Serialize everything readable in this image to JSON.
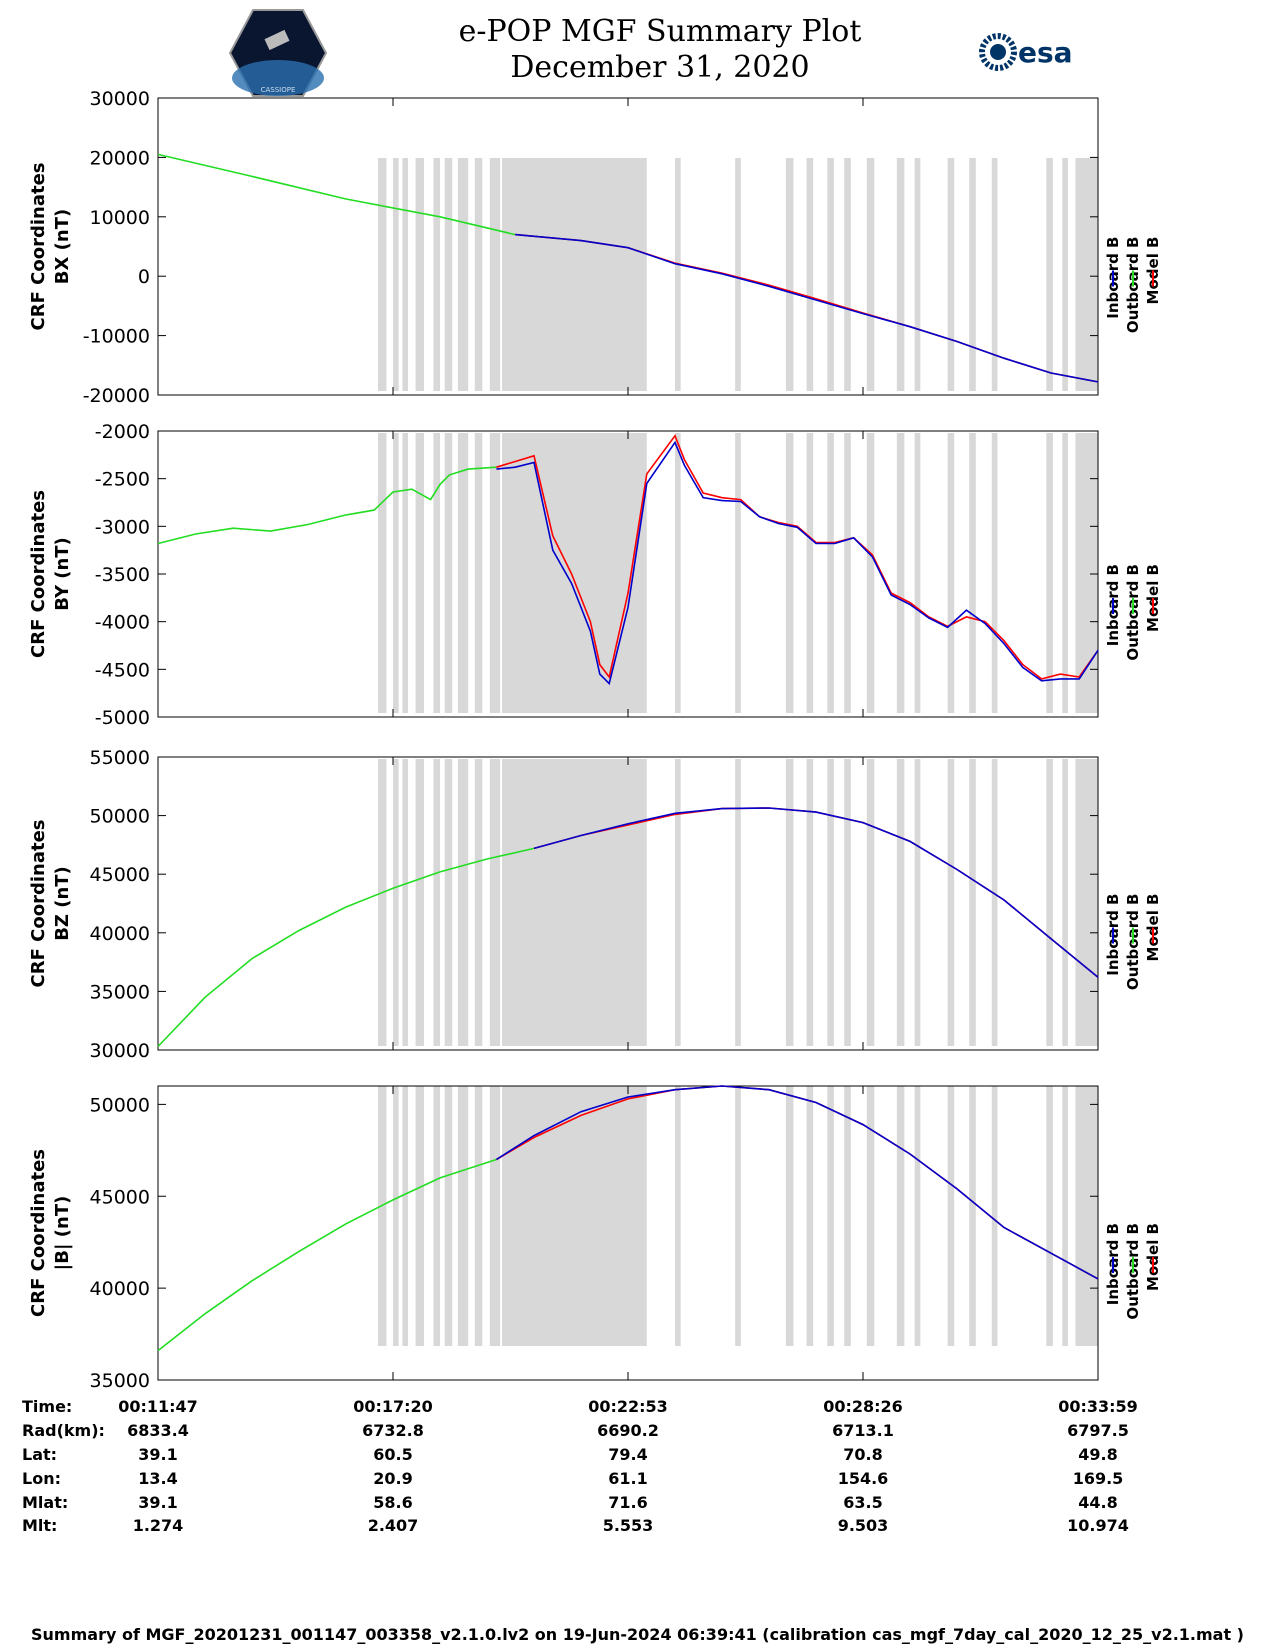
{
  "header": {
    "title_line1": "e-POP MGF Summary Plot",
    "title_line2": "December 31, 2020",
    "esa_logo_text": "esa",
    "cassiope_logo_text": "CASSIOPE"
  },
  "legend": [
    "Inboard B",
    "Outboard B",
    "Model B"
  ],
  "colors": {
    "inboard": "#0000cc",
    "outboard": "#22dd22",
    "model": "#ff0000",
    "gaps": "#d8d8d8"
  },
  "chart_data": [
    {
      "type": "line",
      "ylabel_line1": "CRF Coordinates",
      "ylabel_line2": "BX (nT)",
      "ylim": [
        -20000,
        30000
      ],
      "yticks": [
        "30000",
        "20000",
        "10000",
        "0",
        "-10000",
        "-20000"
      ],
      "ytick_values": [
        30000,
        20000,
        10000,
        0,
        -10000,
        -20000
      ],
      "series": [
        {
          "name": "Outboard B",
          "x": [
            0,
            0.1,
            0.2,
            0.3,
            0.38
          ],
          "values": [
            20500,
            16800,
            13000,
            10000,
            7000
          ]
        },
        {
          "name": "Model B",
          "x": [
            0.38,
            0.45,
            0.5,
            0.55,
            0.6,
            0.65,
            0.7,
            0.75,
            0.8,
            0.85,
            0.9,
            0.95,
            1.0
          ],
          "values": [
            7000,
            6000,
            4800,
            2200,
            500,
            -1500,
            -3800,
            -6200,
            -8500,
            -11000,
            -13800,
            -16300,
            -17800
          ]
        },
        {
          "name": "Inboard B",
          "x": [
            0.38,
            0.45,
            0.5,
            0.55,
            0.6,
            0.65,
            0.7,
            0.75,
            0.8,
            0.85,
            0.9,
            0.95,
            1.0
          ],
          "values": [
            7000,
            6000,
            4800,
            2100,
            400,
            -1700,
            -4000,
            -6300,
            -8500,
            -11000,
            -13800,
            -16300,
            -17800
          ]
        }
      ]
    },
    {
      "type": "line",
      "ylabel_line1": "CRF Coordinates",
      "ylabel_line2": "BY (nT)",
      "ylim": [
        -5000,
        -2000
      ],
      "yticks": [
        "-2000",
        "-2500",
        "-3000",
        "-3500",
        "-4000",
        "-4500",
        "-5000"
      ],
      "ytick_values": [
        -2000,
        -2500,
        -3000,
        -3500,
        -4000,
        -4500,
        -5000
      ],
      "series": [
        {
          "name": "Outboard B",
          "x": [
            0,
            0.04,
            0.08,
            0.12,
            0.16,
            0.2,
            0.23,
            0.25,
            0.27,
            0.29,
            0.3,
            0.31,
            0.33,
            0.36
          ],
          "values": [
            -3180,
            -3080,
            -3020,
            -3050,
            -2980,
            -2880,
            -2830,
            -2640,
            -2610,
            -2720,
            -2560,
            -2460,
            -2400,
            -2380
          ]
        },
        {
          "name": "Model B",
          "x": [
            0.36,
            0.38,
            0.4,
            0.42,
            0.44,
            0.46,
            0.47,
            0.48,
            0.5,
            0.52,
            0.55,
            0.56,
            0.58,
            0.6,
            0.62,
            0.64,
            0.66,
            0.68,
            0.7,
            0.72,
            0.74,
            0.76,
            0.78,
            0.8,
            0.82,
            0.84,
            0.86,
            0.88,
            0.9,
            0.92,
            0.94,
            0.96,
            0.98,
            1.0
          ],
          "values": [
            -2380,
            -2320,
            -2260,
            -3100,
            -3500,
            -4000,
            -4450,
            -4580,
            -3700,
            -2450,
            -2050,
            -2300,
            -2650,
            -2700,
            -2720,
            -2900,
            -2960,
            -3000,
            -3170,
            -3170,
            -3120,
            -3300,
            -3700,
            -3800,
            -3950,
            -4050,
            -3950,
            -4000,
            -4200,
            -4450,
            -4600,
            -4550,
            -4580,
            -4300
          ]
        },
        {
          "name": "Inboard B",
          "x": [
            0.36,
            0.38,
            0.4,
            0.42,
            0.44,
            0.46,
            0.47,
            0.48,
            0.5,
            0.52,
            0.55,
            0.56,
            0.58,
            0.6,
            0.62,
            0.64,
            0.66,
            0.68,
            0.7,
            0.72,
            0.74,
            0.76,
            0.78,
            0.8,
            0.82,
            0.84,
            0.86,
            0.88,
            0.9,
            0.92,
            0.94,
            0.96,
            0.98,
            1.0
          ],
          "values": [
            -2400,
            -2380,
            -2330,
            -3250,
            -3600,
            -4100,
            -4550,
            -4650,
            -3850,
            -2550,
            -2120,
            -2360,
            -2700,
            -2730,
            -2740,
            -2900,
            -2970,
            -3010,
            -3180,
            -3180,
            -3120,
            -3320,
            -3720,
            -3820,
            -3960,
            -4060,
            -3880,
            -4020,
            -4230,
            -4480,
            -4620,
            -4600,
            -4600,
            -4300
          ]
        }
      ]
    },
    {
      "type": "line",
      "ylabel_line1": "CRF Coordinates",
      "ylabel_line2": "BZ (nT)",
      "ylim": [
        30000,
        55000
      ],
      "yticks": [
        "55000",
        "50000",
        "45000",
        "40000",
        "35000",
        "30000"
      ],
      "ytick_values": [
        55000,
        50000,
        45000,
        40000,
        35000,
        30000
      ],
      "series": [
        {
          "name": "Outboard B",
          "x": [
            0,
            0.05,
            0.1,
            0.15,
            0.2,
            0.25,
            0.3,
            0.35,
            0.4
          ],
          "values": [
            30300,
            34500,
            37800,
            40200,
            42200,
            43800,
            45200,
            46300,
            47200
          ]
        },
        {
          "name": "Model B",
          "x": [
            0.4,
            0.45,
            0.5,
            0.55,
            0.6,
            0.65,
            0.7,
            0.75,
            0.8,
            0.85,
            0.9,
            0.95,
            1.0
          ],
          "values": [
            47200,
            48300,
            49200,
            50100,
            50600,
            50650,
            50300,
            49400,
            47800,
            45400,
            42800,
            39500,
            36200
          ]
        },
        {
          "name": "Inboard B",
          "x": [
            0.4,
            0.45,
            0.5,
            0.55,
            0.6,
            0.65,
            0.7,
            0.75,
            0.8,
            0.85,
            0.9,
            0.95,
            1.0
          ],
          "values": [
            47200,
            48300,
            49300,
            50200,
            50600,
            50650,
            50300,
            49400,
            47800,
            45400,
            42800,
            39500,
            36200
          ]
        }
      ]
    },
    {
      "type": "line",
      "ylabel_line1": "CRF Coordinates",
      "ylabel_line2": "|B| (nT)",
      "ylim": [
        35000,
        51000
      ],
      "yticks": [
        "50000",
        "45000",
        "40000",
        "35000"
      ],
      "ytick_values": [
        50000,
        45000,
        40000,
        35000
      ],
      "series": [
        {
          "name": "Outboard B",
          "x": [
            0,
            0.05,
            0.1,
            0.15,
            0.2,
            0.25,
            0.3,
            0.36
          ],
          "values": [
            36600,
            38600,
            40400,
            42000,
            43500,
            44800,
            46000,
            47000
          ]
        },
        {
          "name": "Model B",
          "x": [
            0.36,
            0.4,
            0.45,
            0.5,
            0.55,
            0.6,
            0.65,
            0.7,
            0.75,
            0.8,
            0.85,
            0.9,
            0.95,
            1.0
          ],
          "values": [
            47000,
            48200,
            49400,
            50300,
            50800,
            51000,
            50800,
            50100,
            48900,
            47300,
            45400,
            43300,
            41900,
            40500
          ]
        },
        {
          "name": "Inboard B",
          "x": [
            0.36,
            0.4,
            0.45,
            0.5,
            0.55,
            0.6,
            0.65,
            0.7,
            0.75,
            0.8,
            0.85,
            0.9,
            0.95,
            1.0
          ],
          "values": [
            47000,
            48300,
            49600,
            50400,
            50800,
            51000,
            50800,
            50100,
            48900,
            47300,
            45400,
            43300,
            41900,
            40500
          ]
        }
      ]
    }
  ],
  "data_gaps": [
    [
      0.0,
      0.0
    ]
  ],
  "gap_x_ranges": [
    [
      0.234,
      0.243
    ],
    [
      0.25,
      0.256
    ],
    [
      0.26,
      0.266
    ],
    [
      0.274,
      0.283
    ],
    [
      0.293,
      0.3
    ],
    [
      0.305,
      0.313
    ],
    [
      0.319,
      0.33
    ],
    [
      0.337,
      0.345
    ],
    [
      0.353,
      0.364
    ],
    [
      0.366,
      0.52
    ],
    [
      0.55,
      0.556
    ],
    [
      0.614,
      0.62
    ],
    [
      0.668,
      0.676
    ],
    [
      0.69,
      0.697
    ],
    [
      0.712,
      0.719
    ],
    [
      0.73,
      0.737
    ],
    [
      0.754,
      0.762
    ],
    [
      0.786,
      0.794
    ],
    [
      0.805,
      0.811
    ],
    [
      0.84,
      0.847
    ],
    [
      0.863,
      0.87
    ],
    [
      0.887,
      0.893
    ],
    [
      0.945,
      0.952
    ],
    [
      0.962,
      0.968
    ],
    [
      0.976,
      1.0
    ]
  ],
  "x_ticks": [
    "00:11:47",
    "00:17:20",
    "00:22:53",
    "00:28:26",
    "00:33:59"
  ],
  "x_tick_values": [
    0,
    0.25,
    0.5,
    0.75,
    1.0
  ],
  "ephemeris": {
    "labels": [
      "Time:",
      "Rad(km):",
      "Lat:",
      "Lon:",
      "Mlat:",
      "Mlt:"
    ],
    "rows": [
      [
        "6833.4",
        "6732.8",
        "6690.2",
        "6713.1",
        "6797.5"
      ],
      [
        "39.1",
        "60.5",
        "79.4",
        "70.8",
        "49.8"
      ],
      [
        "13.4",
        "20.9",
        "61.1",
        "154.6",
        "169.5"
      ],
      [
        "39.1",
        "58.6",
        "71.6",
        "63.5",
        "44.8"
      ],
      [
        "1.274",
        "2.407",
        "5.553",
        "9.503",
        "10.974"
      ]
    ]
  },
  "footer": "Summary of MGF_20201231_001147_003358_v2.1.0.lv2 on 19-Jun-2024 06:39:41 (calibration cas_mgf_7day_cal_2020_12_25_v2.1.mat )"
}
